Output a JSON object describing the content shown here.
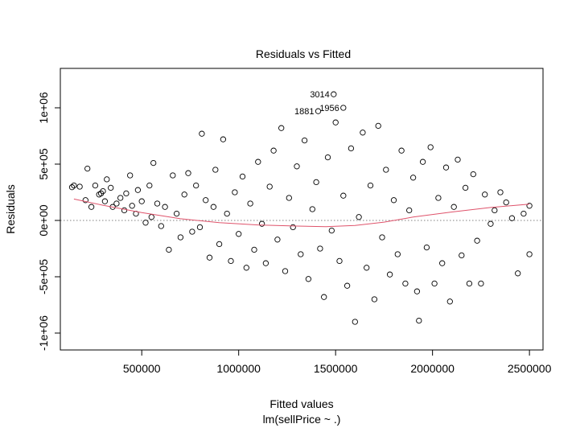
{
  "chart_data": {
    "type": "scatter",
    "title": "Residuals vs Fitted",
    "xlabel": "Fitted values",
    "sublabel": "lm(sellPrice ~ .)",
    "ylabel": "Residuals",
    "xlim": [
      80000,
      2570000
    ],
    "ylim": [
      -1150000,
      1350000
    ],
    "x_ticks": [
      500000,
      1000000,
      1500000,
      2000000,
      2500000
    ],
    "x_tick_labels": [
      "500000",
      "1000000",
      "1500000",
      "2000000",
      "2500000"
    ],
    "y_ticks": [
      -1000000,
      -500000,
      0,
      500000,
      1000000
    ],
    "y_tick_labels": [
      "-1e+06",
      "-5e+05",
      "0e+00",
      "5e+05",
      "1e+06"
    ],
    "reference_line": {
      "y": 0,
      "style": "dotted",
      "color": "#808080"
    },
    "smooth_line": {
      "color": "#df536b",
      "points": [
        [
          150000,
          190000
        ],
        [
          300000,
          135000
        ],
        [
          500000,
          70000
        ],
        [
          700000,
          15000
        ],
        [
          900000,
          -20000
        ],
        [
          1100000,
          -40000
        ],
        [
          1300000,
          -50000
        ],
        [
          1450000,
          -55000
        ],
        [
          1600000,
          -45000
        ],
        [
          1750000,
          -15000
        ],
        [
          1900000,
          30000
        ],
        [
          2100000,
          75000
        ],
        [
          2300000,
          115000
        ],
        [
          2500000,
          145000
        ]
      ]
    },
    "labeled_points": [
      {
        "label": "3014",
        "x": 1490000,
        "y": 1120000
      },
      {
        "label": "1956",
        "x": 1540000,
        "y": 1000000
      },
      {
        "label": "1881",
        "x": 1410000,
        "y": 970000
      }
    ],
    "points": [
      [
        140000,
        295000
      ],
      [
        150000,
        310000
      ],
      [
        180000,
        300000
      ],
      [
        210000,
        180000
      ],
      [
        220000,
        460000
      ],
      [
        240000,
        120000
      ],
      [
        260000,
        310000
      ],
      [
        280000,
        230000
      ],
      [
        290000,
        240000
      ],
      [
        300000,
        260000
      ],
      [
        310000,
        170000
      ],
      [
        320000,
        365000
      ],
      [
        340000,
        290000
      ],
      [
        350000,
        120000
      ],
      [
        370000,
        150000
      ],
      [
        390000,
        200000
      ],
      [
        410000,
        90000
      ],
      [
        420000,
        240000
      ],
      [
        440000,
        400000
      ],
      [
        450000,
        130000
      ],
      [
        470000,
        60000
      ],
      [
        480000,
        270000
      ],
      [
        500000,
        170000
      ],
      [
        520000,
        -20000
      ],
      [
        540000,
        310000
      ],
      [
        550000,
        30000
      ],
      [
        560000,
        510000
      ],
      [
        580000,
        150000
      ],
      [
        600000,
        -50000
      ],
      [
        620000,
        120000
      ],
      [
        640000,
        -260000
      ],
      [
        660000,
        400000
      ],
      [
        680000,
        60000
      ],
      [
        700000,
        -150000
      ],
      [
        720000,
        230000
      ],
      [
        740000,
        420000
      ],
      [
        760000,
        -100000
      ],
      [
        780000,
        310000
      ],
      [
        800000,
        -60000
      ],
      [
        810000,
        770000
      ],
      [
        830000,
        180000
      ],
      [
        850000,
        -330000
      ],
      [
        870000,
        120000
      ],
      [
        880000,
        450000
      ],
      [
        900000,
        -210000
      ],
      [
        920000,
        720000
      ],
      [
        940000,
        60000
      ],
      [
        960000,
        -360000
      ],
      [
        980000,
        250000
      ],
      [
        1000000,
        -120000
      ],
      [
        1020000,
        390000
      ],
      [
        1040000,
        -420000
      ],
      [
        1060000,
        150000
      ],
      [
        1080000,
        -260000
      ],
      [
        1100000,
        520000
      ],
      [
        1120000,
        -30000
      ],
      [
        1140000,
        -380000
      ],
      [
        1160000,
        300000
      ],
      [
        1180000,
        620000
      ],
      [
        1200000,
        -170000
      ],
      [
        1220000,
        820000
      ],
      [
        1240000,
        -450000
      ],
      [
        1260000,
        200000
      ],
      [
        1280000,
        -60000
      ],
      [
        1300000,
        480000
      ],
      [
        1320000,
        -300000
      ],
      [
        1340000,
        710000
      ],
      [
        1360000,
        -520000
      ],
      [
        1380000,
        100000
      ],
      [
        1400000,
        340000
      ],
      [
        1420000,
        -250000
      ],
      [
        1440000,
        -680000
      ],
      [
        1460000,
        560000
      ],
      [
        1480000,
        -90000
      ],
      [
        1500000,
        870000
      ],
      [
        1520000,
        -360000
      ],
      [
        1540000,
        220000
      ],
      [
        1560000,
        -580000
      ],
      [
        1580000,
        640000
      ],
      [
        1600000,
        -900000
      ],
      [
        1620000,
        30000
      ],
      [
        1640000,
        780000
      ],
      [
        1660000,
        -420000
      ],
      [
        1680000,
        310000
      ],
      [
        1700000,
        -700000
      ],
      [
        1720000,
        840000
      ],
      [
        1740000,
        -150000
      ],
      [
        1760000,
        450000
      ],
      [
        1780000,
        -480000
      ],
      [
        1800000,
        180000
      ],
      [
        1820000,
        -300000
      ],
      [
        1840000,
        620000
      ],
      [
        1860000,
        -560000
      ],
      [
        1880000,
        90000
      ],
      [
        1900000,
        380000
      ],
      [
        1920000,
        -630000
      ],
      [
        1930000,
        -890000
      ],
      [
        1950000,
        520000
      ],
      [
        1970000,
        -240000
      ],
      [
        1990000,
        650000
      ],
      [
        2010000,
        -560000
      ],
      [
        2030000,
        200000
      ],
      [
        2050000,
        -380000
      ],
      [
        2070000,
        470000
      ],
      [
        2090000,
        -720000
      ],
      [
        2110000,
        120000
      ],
      [
        2130000,
        540000
      ],
      [
        2150000,
        -310000
      ],
      [
        2170000,
        290000
      ],
      [
        2190000,
        -560000
      ],
      [
        2210000,
        410000
      ],
      [
        2230000,
        -180000
      ],
      [
        2250000,
        -560000
      ],
      [
        2270000,
        230000
      ],
      [
        2300000,
        -30000
      ],
      [
        2320000,
        90000
      ],
      [
        2350000,
        250000
      ],
      [
        2380000,
        160000
      ],
      [
        2410000,
        20000
      ],
      [
        2440000,
        -470000
      ],
      [
        2470000,
        60000
      ],
      [
        2500000,
        130000
      ],
      [
        2500000,
        -300000
      ]
    ]
  }
}
